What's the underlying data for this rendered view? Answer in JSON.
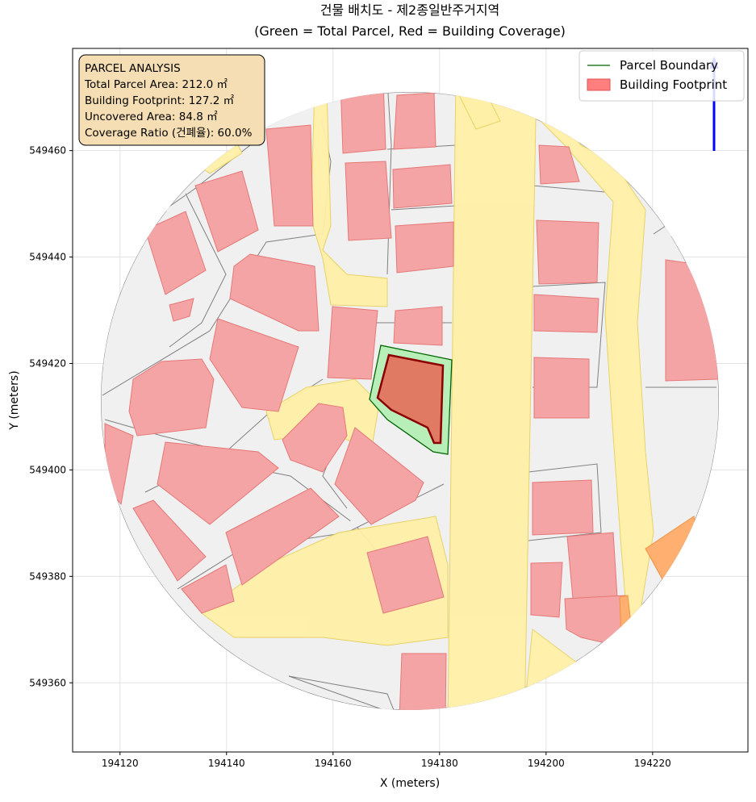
{
  "chart_data": {
    "type": "map",
    "title": "건물 배치도 - 제2종일반주거지역",
    "subtitle": "(Green = Total Parcel, Red = Building Coverage)",
    "x_label": "X (meters)",
    "y_label": "Y (meters)",
    "xlim": [
      194111.1,
      194237.9
    ],
    "ylim": [
      549347.0,
      549479.2
    ],
    "xticks": [
      194120,
      194140,
      194160,
      194180,
      194200,
      194220
    ],
    "yticks": [
      549360,
      549380,
      549400,
      549420,
      549440,
      549460
    ],
    "grid": true,
    "legend": {
      "position": "upper right",
      "entries": [
        {
          "name": "Parcel Boundary",
          "color": "#006400"
        },
        {
          "name": "Building Footprint",
          "color": "#ff7f7f"
        }
      ]
    },
    "annotation": [
      "PARCEL ANALYSIS",
      "Total Parcel Area: 212.0 ㎡",
      "Building Footprint: 127.2 ㎡",
      "Uncovered Area: 84.8 ㎡",
      "Coverage Ratio (건폐율): 60.0%"
    ]
  }
}
